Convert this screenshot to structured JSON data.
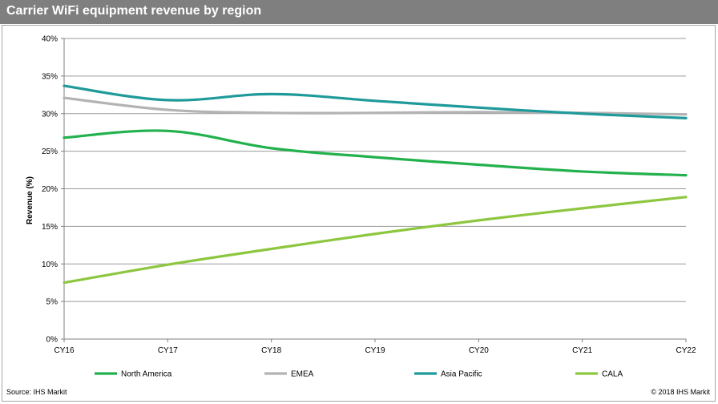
{
  "header": {
    "title": "Carrier WiFi equipment revenue by region"
  },
  "footer": {
    "source": "Source:  IHS Markit",
    "copyright": "© 2018 IHS Markit"
  },
  "colors": {
    "title_bg": "#7f7f7f",
    "grid": "#9a9a9a",
    "north_america": "#23b14d",
    "emea": "#b3b3b3",
    "asia_pacific": "#1f9a9a",
    "cala": "#8dc63f"
  },
  "chart_data": {
    "type": "line",
    "title": "Carrier WiFi equipment revenue by region",
    "xlabel": "",
    "ylabel": "Revenue (%)",
    "categories": [
      "CY16",
      "CY17",
      "CY18",
      "CY19",
      "CY20",
      "CY21",
      "CY22"
    ],
    "ylim": [
      0,
      40
    ],
    "yticks": [
      0,
      5,
      10,
      15,
      20,
      25,
      30,
      35,
      40
    ],
    "ytick_labels": [
      "0%",
      "5%",
      "10%",
      "15%",
      "20%",
      "25%",
      "30%",
      "35%",
      "40%"
    ],
    "grid": true,
    "legend_position": "bottom",
    "series": [
      {
        "name": "North America",
        "color": "#23b14d",
        "values": [
          26.8,
          27.7,
          25.4,
          24.2,
          23.2,
          22.3,
          21.8
        ]
      },
      {
        "name": "EMEA",
        "color": "#b3b3b3",
        "values": [
          32.1,
          30.5,
          30.1,
          30.1,
          30.2,
          30.1,
          29.9
        ]
      },
      {
        "name": "Asia Pacific",
        "color": "#1f9a9a",
        "values": [
          33.7,
          31.8,
          32.6,
          31.7,
          30.8,
          30.0,
          29.4
        ]
      },
      {
        "name": "CALA",
        "color": "#8dc63f",
        "values": [
          7.5,
          9.9,
          12.0,
          14.0,
          15.8,
          17.4,
          18.9
        ]
      }
    ]
  }
}
